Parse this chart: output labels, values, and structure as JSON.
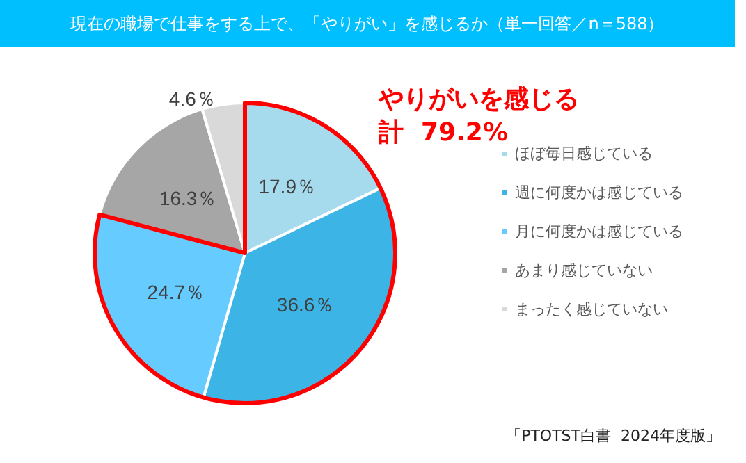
{
  "chart_data": {
    "type": "pie",
    "title": "現在の職場で仕事をする上で、「やりがい」を感じるか（単一回答／n＝588）",
    "categories": [
      "ほぼ毎日感じている",
      "週に何度かは感じている",
      "月に何度かは感じている",
      "あまり感じていない",
      "まったく感じていない"
    ],
    "values": [
      17.9,
      36.6,
      24.7,
      16.3,
      4.6
    ],
    "colors": [
      "#a6dbee",
      "#3db4e6",
      "#66ccff",
      "#a6a6a6",
      "#d9d9d9"
    ],
    "value_labels": [
      "17.9％",
      "36.6％",
      "24.7％",
      "16.3％",
      "4.6％"
    ],
    "legend": "right",
    "annotations": [
      "やりがいを感じる",
      "計  79.2%",
      "「PTOTST白書  2024年度版」"
    ]
  }
}
